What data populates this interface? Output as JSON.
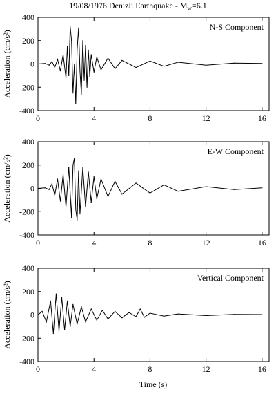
{
  "title": "19/08/1976 Denizli Earthquake - M",
  "title_subscript": "w",
  "title_suffix": "=6.1",
  "xlabel": "Time (s)",
  "chart_data": [
    {
      "type": "line",
      "label": "N-S Component",
      "ylabel": "Acceleration (cm/s²)",
      "xlim": [
        0,
        16.5
      ],
      "ylim": [
        -400,
        400
      ],
      "xticks": [
        "0",
        "4",
        "8",
        "12",
        "16"
      ],
      "yticks": [
        "400",
        "200",
        "0",
        "-200",
        "-400"
      ],
      "series": [
        {
          "x": [
            0,
            0.5,
            0.8,
            1.0,
            1.2,
            1.4,
            1.6,
            1.8,
            2.0,
            2.1,
            2.2,
            2.3,
            2.4,
            2.5,
            2.6,
            2.7,
            2.8,
            2.9,
            3.0,
            3.1,
            3.2,
            3.3,
            3.4,
            3.5,
            3.6,
            3.7,
            3.8,
            4.0,
            4.2,
            4.5,
            5.0,
            5.5,
            6.0,
            7.0,
            8.0,
            9.0,
            10.0,
            12.0,
            14.0,
            16.0
          ],
          "y": [
            0,
            5,
            -10,
            20,
            -30,
            40,
            -60,
            80,
            -120,
            150,
            -100,
            320,
            200,
            -250,
            0,
            -340,
            120,
            310,
            -60,
            -260,
            200,
            -140,
            160,
            -200,
            120,
            -110,
            80,
            -70,
            60,
            -50,
            50,
            -40,
            30,
            -30,
            25,
            -20,
            15,
            -10,
            8,
            5
          ]
        }
      ]
    },
    {
      "type": "line",
      "label": "E-W Component",
      "ylabel": "Acceleration (cm/s²)",
      "xlim": [
        0,
        16.5
      ],
      "ylim": [
        -400,
        400
      ],
      "xticks": [
        "0",
        "4",
        "8",
        "12",
        "16"
      ],
      "yticks": [
        "400",
        "200",
        "0",
        "-200",
        "-400"
      ],
      "series": [
        {
          "x": [
            0,
            0.5,
            0.8,
            1.0,
            1.2,
            1.4,
            1.6,
            1.8,
            2.0,
            2.2,
            2.4,
            2.5,
            2.6,
            2.7,
            2.8,
            2.9,
            3.0,
            3.2,
            3.4,
            3.6,
            3.8,
            4.0,
            4.2,
            4.5,
            5.0,
            5.5,
            6.0,
            7.0,
            8.0,
            9.0,
            10.0,
            12.0,
            14.0,
            16.0
          ],
          "y": [
            0,
            5,
            -10,
            40,
            -60,
            80,
            -110,
            120,
            -160,
            180,
            -250,
            200,
            260,
            -180,
            -270,
            150,
            -220,
            180,
            -160,
            140,
            -120,
            100,
            -90,
            80,
            -70,
            60,
            -50,
            45,
            -40,
            30,
            -25,
            15,
            -10,
            5
          ]
        }
      ]
    },
    {
      "type": "line",
      "label": "Vertical Component",
      "ylabel": "Acceleration (cm/s²)",
      "xlim": [
        0,
        16.5
      ],
      "ylim": [
        -400,
        400
      ],
      "xticks": [
        "0",
        "4",
        "8",
        "12",
        "16"
      ],
      "yticks": [
        "400",
        "200",
        "0",
        "-200",
        "-400"
      ],
      "series": [
        {
          "x": [
            0,
            0.3,
            0.6,
            0.9,
            1.1,
            1.3,
            1.5,
            1.7,
            1.9,
            2.1,
            2.3,
            2.5,
            2.8,
            3.1,
            3.4,
            3.8,
            4.2,
            4.6,
            5.0,
            5.5,
            6.0,
            6.5,
            7.0,
            7.3,
            7.6,
            8.0,
            9.0,
            10.0,
            12.0,
            14.0,
            16.0
          ],
          "y": [
            0,
            30,
            -60,
            120,
            -160,
            180,
            -140,
            150,
            -130,
            120,
            -100,
            90,
            -80,
            70,
            -60,
            50,
            -45,
            40,
            -35,
            30,
            -25,
            20,
            -15,
            50,
            -20,
            15,
            -10,
            8,
            -6,
            4,
            3
          ]
        }
      ]
    }
  ]
}
